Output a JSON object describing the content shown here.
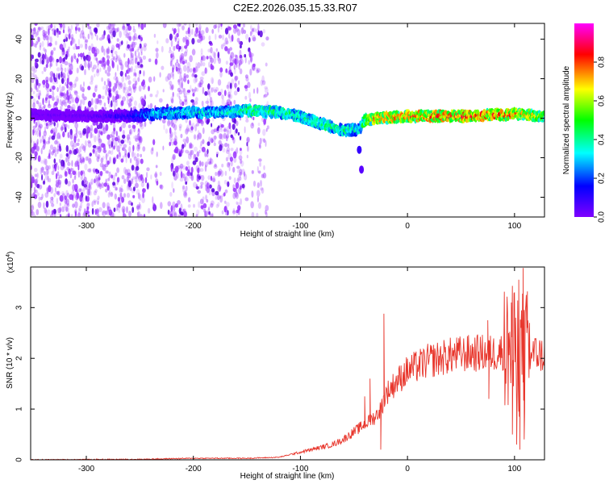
{
  "figure": {
    "title": "C2E2.2026.035.15.33.R07"
  },
  "chart_data": [
    {
      "type": "heatmap",
      "xlabel": "Height of straight line (km)",
      "ylabel": "Frequency (Hz)",
      "xlim": [
        -352,
        128
      ],
      "ylim": [
        -50,
        48
      ],
      "xticks": [
        -300,
        -200,
        -100,
        0,
        100
      ],
      "yticks": [
        -40,
        -20,
        0,
        20,
        40
      ],
      "colorbar": {
        "label": "Normalized spectral amplitude",
        "range": [
          0,
          1
        ],
        "ticks": [
          0.0,
          0.2,
          0.4,
          0.6,
          0.8
        ],
        "colormap": [
          "#7f00ff",
          "#0000ff",
          "#00ffff",
          "#00ff00",
          "#ffff00",
          "#ff0000",
          "#ff00ff"
        ]
      },
      "noise_regions": [
        {
          "x_start": -352,
          "x_end": -245,
          "density": "high"
        },
        {
          "x_start": -245,
          "x_end": -222,
          "density": "low"
        },
        {
          "x_start": -222,
          "x_end": -155,
          "density": "medium"
        },
        {
          "x_start": -155,
          "x_end": -130,
          "density": "sparse"
        }
      ],
      "ridge": {
        "x": [
          -352,
          -300,
          -260,
          -240,
          -200,
          -170,
          -150,
          -120,
          -100,
          -80,
          -60,
          -45,
          -40,
          -30,
          0,
          50,
          100,
          128
        ],
        "frequency": [
          2,
          1,
          1,
          2,
          3,
          3,
          4,
          3,
          1,
          -3,
          -6,
          -6,
          -1,
          0,
          1,
          1,
          2,
          1
        ],
        "amplitude": [
          0.05,
          0.05,
          0.15,
          0.35,
          0.4,
          0.4,
          0.5,
          0.5,
          0.45,
          0.5,
          0.45,
          0.4,
          0.6,
          0.75,
          0.8,
          0.85,
          0.8,
          0.6
        ]
      },
      "blobs": [
        {
          "x": -45,
          "frequency": -16,
          "amplitude": 0.1
        },
        {
          "x": -43,
          "frequency": -26,
          "amplitude": 0.05
        }
      ]
    },
    {
      "type": "line",
      "xlabel": "Height of straight line (km)",
      "ylabel": "SNR (10 * v/v)",
      "yscale_label": "(x10",
      "yscale_exp": "4",
      "xlim": [
        -352,
        128
      ],
      "ylim": [
        0,
        3.8
      ],
      "xticks": [
        -300,
        -200,
        -100,
        0,
        100
      ],
      "yticks": [
        0,
        1,
        2,
        3
      ],
      "color": "#e8362c",
      "series": [
        {
          "envelope_x": [
            -352,
            -250,
            -200,
            -150,
            -120,
            -110,
            -100,
            -90,
            -80,
            -70,
            -60,
            -50,
            -40,
            -30,
            -25,
            -20,
            -10,
            0,
            10,
            20,
            30,
            40,
            50,
            60,
            70,
            75,
            80,
            90,
            95,
            100,
            105,
            110,
            115,
            120,
            128
          ],
          "envelope_y": [
            0.0,
            0.01,
            0.03,
            0.03,
            0.05,
            0.1,
            0.15,
            0.2,
            0.25,
            0.3,
            0.4,
            0.55,
            0.7,
            0.85,
            1.0,
            1.3,
            1.55,
            1.75,
            1.85,
            1.95,
            2.0,
            2.05,
            2.08,
            2.1,
            2.1,
            2.1,
            2.1,
            2.15,
            2.15,
            2.15,
            2.1,
            2.1,
            2.1,
            2.1,
            2.05
          ],
          "spikes": [
            {
              "x": -22,
              "y": 2.88
            },
            {
              "x": -25,
              "y": 0.2
            },
            {
              "x": -35,
              "y": 1.6
            },
            {
              "x": -40,
              "y": 1.25
            },
            {
              "x": 75,
              "y": 2.75
            },
            {
              "x": 76,
              "y": 1.2
            },
            {
              "x": 97,
              "y": 3.1
            },
            {
              "x": 98,
              "y": 0.5
            },
            {
              "x": 100,
              "y": 3.3
            },
            {
              "x": 102,
              "y": 0.3
            },
            {
              "x": 104,
              "y": 3.55
            },
            {
              "x": 105,
              "y": 0.2
            },
            {
              "x": 108,
              "y": 3.78
            },
            {
              "x": 109,
              "y": 0.4
            },
            {
              "x": 112,
              "y": 2.6
            }
          ]
        }
      ]
    }
  ]
}
